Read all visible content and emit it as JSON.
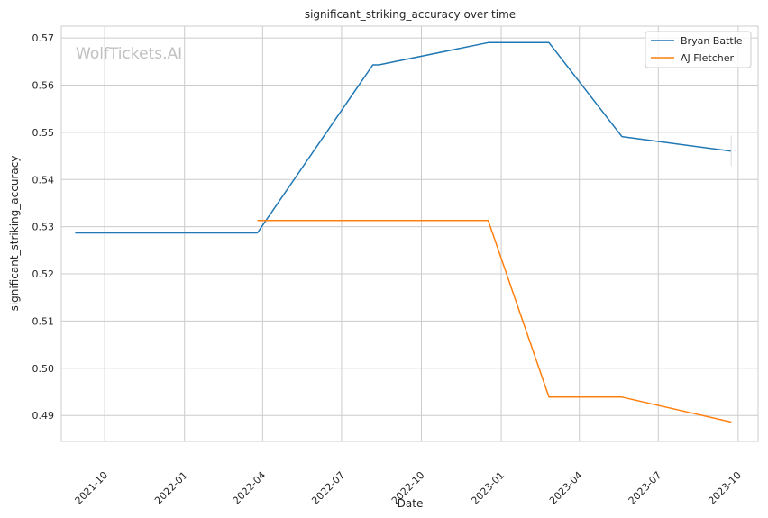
{
  "watermark": "WolfTickets.AI",
  "chart_data": {
    "type": "line",
    "title": "significant_striking_accuracy over time",
    "xlabel": "Date",
    "ylabel": "significant_striking_accuracy",
    "x_ticks": [
      "2021-10",
      "2022-01",
      "2022-04",
      "2022-07",
      "2022-10",
      "2023-01",
      "2023-04",
      "2023-07",
      "2023-10"
    ],
    "y_ticks": [
      0.49,
      0.5,
      0.51,
      0.52,
      0.53,
      0.54,
      0.55,
      0.56,
      0.57
    ],
    "y_tick_labels": [
      "0.49",
      "0.50",
      "0.51",
      "0.52",
      "0.53",
      "0.54",
      "0.55",
      "0.56",
      "0.57"
    ],
    "xlim": [
      "2021-08-12",
      "2023-10-24"
    ],
    "ylim": [
      0.4845,
      0.5725
    ],
    "grid": true,
    "legend_position": "top-right",
    "series": [
      {
        "name": "Bryan Battle",
        "color": "#1f77b4",
        "points": [
          {
            "x": "2021-08-28",
            "y": 0.5287
          },
          {
            "x": "2022-03-26",
            "y": 0.5287
          },
          {
            "x": "2022-08-06",
            "y": 0.5643
          },
          {
            "x": "2022-08-13",
            "y": 0.5643
          },
          {
            "x": "2022-12-17",
            "y": 0.569
          },
          {
            "x": "2023-02-25",
            "y": 0.569
          },
          {
            "x": "2023-05-20",
            "y": 0.5491
          },
          {
            "x": "2023-09-23",
            "y": 0.546
          }
        ]
      },
      {
        "name": "AJ Fletcher",
        "color": "#ff7f0e",
        "points": [
          {
            "x": "2022-03-26",
            "y": 0.5313
          },
          {
            "x": "2022-12-17",
            "y": 0.5313
          },
          {
            "x": "2023-02-25",
            "y": 0.4939
          },
          {
            "x": "2023-05-20",
            "y": 0.4939
          },
          {
            "x": "2023-09-23",
            "y": 0.4886
          }
        ]
      }
    ]
  }
}
